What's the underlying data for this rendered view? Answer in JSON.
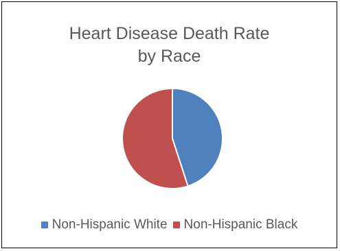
{
  "chart_data": {
    "type": "pie",
    "title": "Heart Disease Death Rate by Race",
    "title_lines": [
      "Heart Disease Death Rate",
      "by Race"
    ],
    "categories": [
      "Non-Hispanic White",
      "Non-Hispanic Black"
    ],
    "values": [
      45,
      55
    ],
    "colors": [
      "#4f81bd",
      "#c0504d"
    ],
    "legend_position": "bottom",
    "start_angle_deg": 0,
    "direction": "clockwise"
  }
}
